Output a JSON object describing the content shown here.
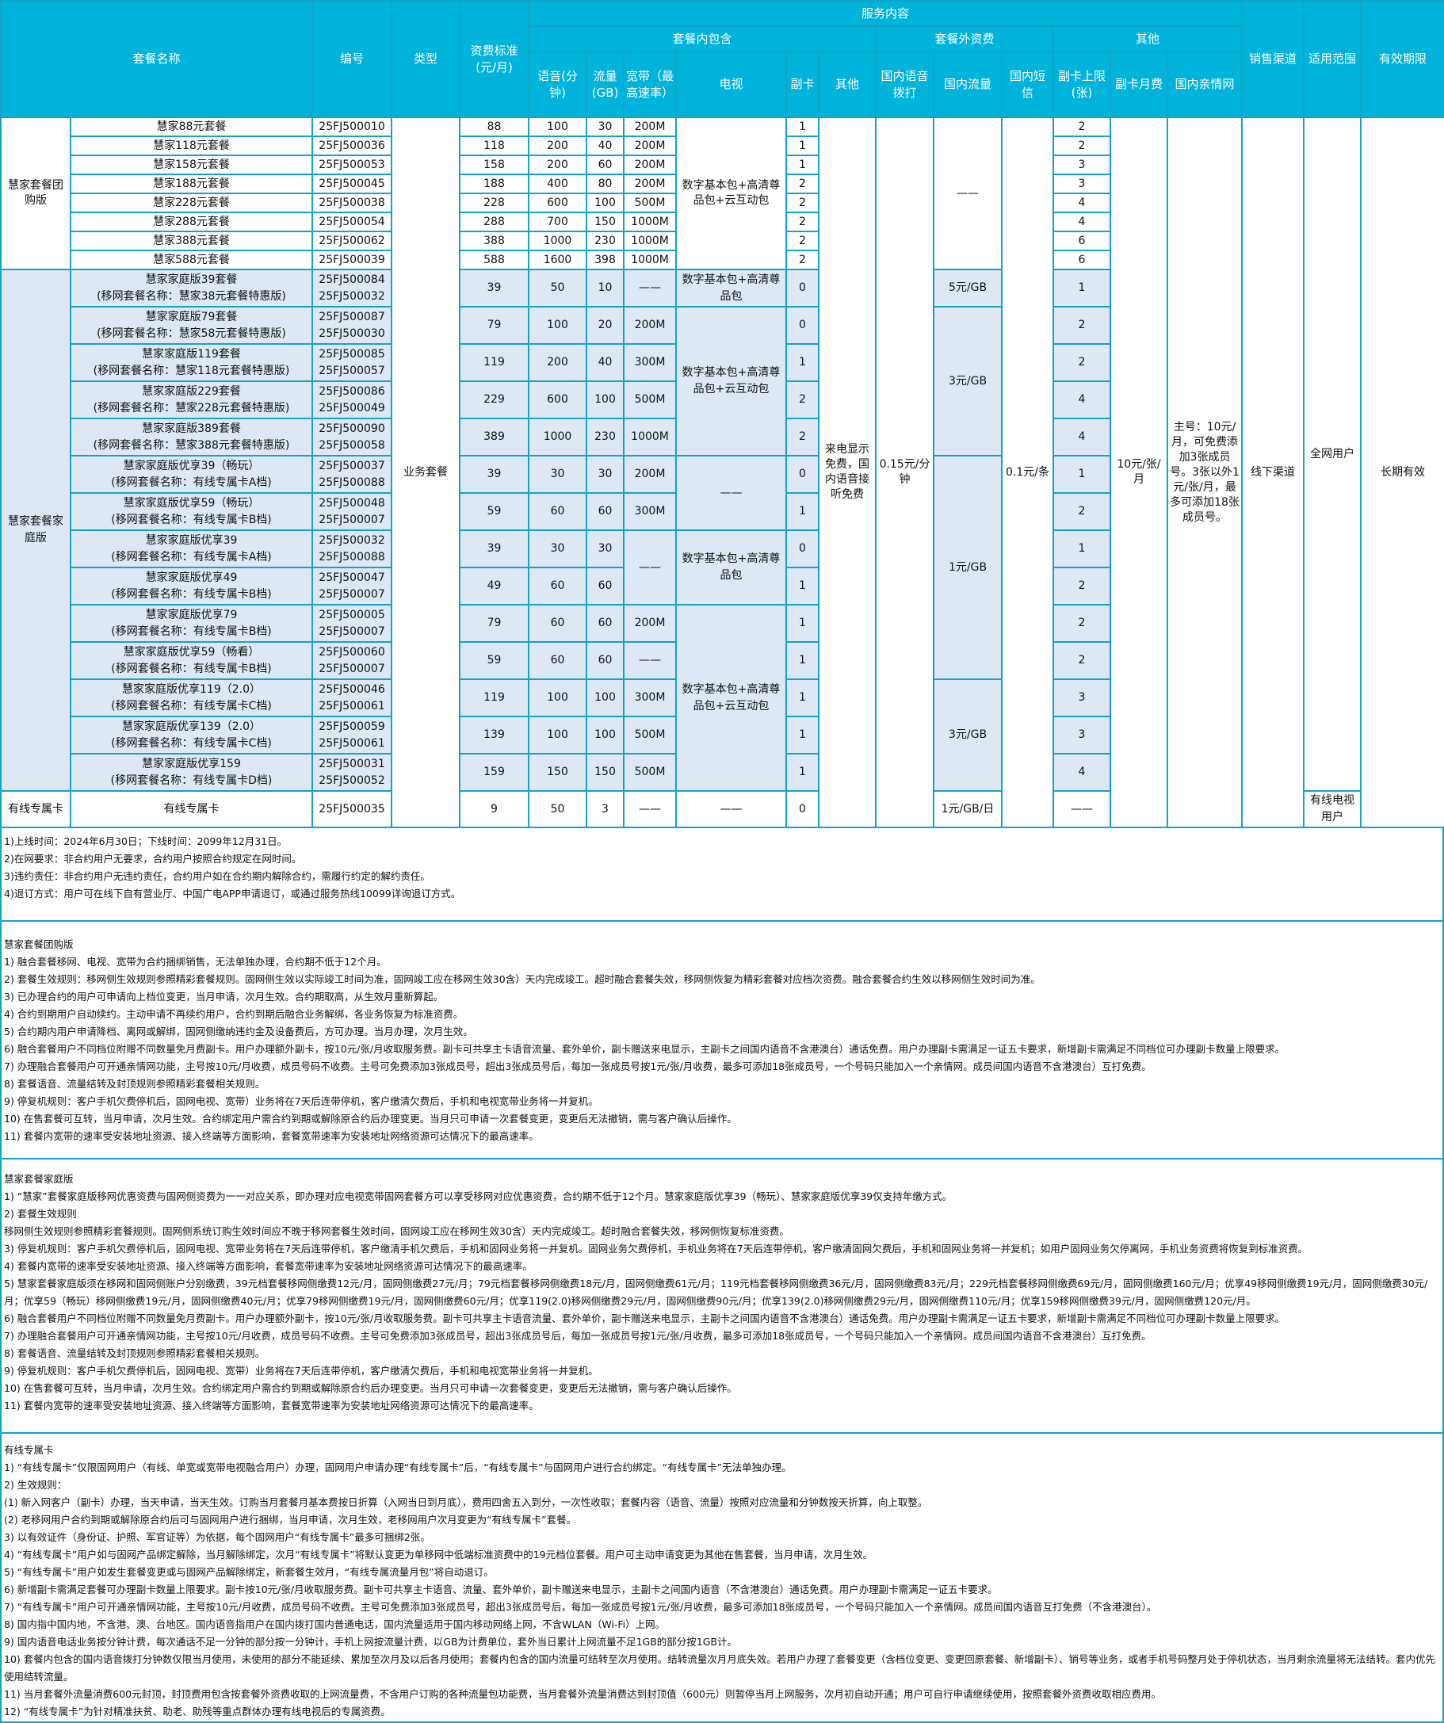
{
  "colors": {
    "header_bg": "#00b3da",
    "border": "#14a3c7",
    "family_shade": "#dde8f4"
  },
  "header": {
    "name": "套餐名称",
    "code": "编号",
    "type": "类型",
    "fee": "资费标准(元/月)",
    "service": "服务内容",
    "included": "套餐内包含",
    "extra": "套餐外资费",
    "others": "其他",
    "channel": "销售渠道",
    "scope": "适用范围",
    "validity": "有效期限",
    "voice": "语音(分钟)",
    "flow": "流量(GB)",
    "bw": "宽带（最高速率）",
    "tv": "电视",
    "fuka": "副卡",
    "other": "其他",
    "voice_out": "国内语音拨打",
    "dom_flow": "国内流量",
    "sms": "国内短信",
    "fuka_max": "副卡上限(张)",
    "fuka_fee": "副卡月费",
    "family_net": "国内亲情网"
  },
  "table": {
    "rows": [
      {
        "name": [
          "慧家88元套餐"
        ],
        "codes": [
          "25FJ500010"
        ],
        "fee": "88",
        "voice": "100",
        "flow": "30",
        "fuka": "1",
        "fuka_max": "2"
      },
      {
        "name": [
          "慧家118元套餐"
        ],
        "codes": [
          "25FJ500036"
        ],
        "fee": "118",
        "voice": "200",
        "flow": "40",
        "fuka": "1",
        "fuka_max": "2"
      },
      {
        "name": [
          "慧家158元套餐"
        ],
        "codes": [
          "25FJ500053"
        ],
        "fee": "158",
        "voice": "200",
        "flow": "60",
        "fuka": "1",
        "fuka_max": "3"
      },
      {
        "name": [
          "慧家188元套餐"
        ],
        "codes": [
          "25FJ500045"
        ],
        "fee": "188",
        "voice": "400",
        "flow": "80",
        "fuka": "2",
        "fuka_max": "3"
      },
      {
        "name": [
          "慧家228元套餐"
        ],
        "codes": [
          "25FJ500038"
        ],
        "fee": "228",
        "voice": "600",
        "flow": "100",
        "fuka": "2",
        "fuka_max": "4"
      },
      {
        "name": [
          "慧家288元套餐"
        ],
        "codes": [
          "25FJ500054"
        ],
        "fee": "288",
        "voice": "700",
        "flow": "150",
        "fuka": "2",
        "fuka_max": "4"
      },
      {
        "name": [
          "慧家388元套餐"
        ],
        "codes": [
          "25FJ500062"
        ],
        "fee": "388",
        "voice": "1000",
        "flow": "230",
        "fuka": "2",
        "fuka_max": "6"
      },
      {
        "name": [
          "慧家588元套餐"
        ],
        "codes": [
          "25FJ500039"
        ],
        "fee": "588",
        "voice": "1600",
        "flow": "398",
        "fuka": "2",
        "fuka_max": "6"
      },
      {
        "name": [
          "慧家家庭版39套餐",
          "(移网套餐名称：慧家38元套餐特惠版)"
        ],
        "codes": [
          "25FJ500084",
          "25FJ500032"
        ],
        "fee": "39",
        "voice": "50",
        "flow": "10",
        "fuka": "0",
        "fuka_max": "1"
      },
      {
        "name": [
          "慧家家庭版79套餐",
          "(移网套餐名称：慧家58元套餐特惠版)"
        ],
        "codes": [
          "25FJ500087",
          "25FJ500030"
        ],
        "fee": "79",
        "voice": "100",
        "flow": "20",
        "fuka": "0",
        "fuka_max": "2"
      },
      {
        "name": [
          "慧家家庭版119套餐",
          "(移网套餐名称：慧家118元套餐特惠版)"
        ],
        "codes": [
          "25FJ500085",
          "25FJ500057"
        ],
        "fee": "119",
        "voice": "200",
        "flow": "40",
        "fuka": "1",
        "fuka_max": "2"
      },
      {
        "name": [
          "慧家家庭版229套餐",
          "(移网套餐名称：慧家228元套餐特惠版)"
        ],
        "codes": [
          "25FJ500086",
          "25FJ500049"
        ],
        "fee": "229",
        "voice": "600",
        "flow": "100",
        "fuka": "2",
        "fuka_max": "4"
      },
      {
        "name": [
          "慧家家庭版389套餐",
          "(移网套餐名称：慧家388元套餐特惠版)"
        ],
        "codes": [
          "25FJ500090",
          "25FJ500058"
        ],
        "fee": "389",
        "voice": "1000",
        "flow": "230",
        "fuka": "2",
        "fuka_max": "4"
      },
      {
        "name": [
          "慧家家庭版优享39（畅玩）",
          "(移网套餐名称：有线专属卡A档)"
        ],
        "codes": [
          "25FJ500037",
          "25FJ500088"
        ],
        "fee": "39",
        "voice": "30",
        "flow": "30",
        "fuka": "0",
        "fuka_max": "1"
      },
      {
        "name": [
          "慧家家庭版优享59（畅玩）",
          "(移网套餐名称：有线专属卡B档)"
        ],
        "codes": [
          "25FJ500048",
          "25FJ500007"
        ],
        "fee": "59",
        "voice": "60",
        "flow": "60",
        "fuka": "1",
        "fuka_max": "2"
      },
      {
        "name": [
          "慧家家庭版优享39",
          "(移网套餐名称：有线专属卡A档)"
        ],
        "codes": [
          "25FJ500032",
          "25FJ500088"
        ],
        "fee": "39",
        "voice": "30",
        "flow": "30",
        "fuka": "0",
        "fuka_max": "1"
      },
      {
        "name": [
          "慧家家庭版优享49",
          "(移网套餐名称：有线专属卡B档)"
        ],
        "codes": [
          "25FJ500047",
          "25FJ500007"
        ],
        "fee": "49",
        "voice": "60",
        "flow": "60",
        "fuka": "1",
        "fuka_max": "2"
      },
      {
        "name": [
          "慧家家庭版优享79",
          "(移网套餐名称：有线专属卡B档)"
        ],
        "codes": [
          "25FJ500005",
          "25FJ500007"
        ],
        "fee": "79",
        "voice": "60",
        "flow": "60",
        "fuka": "1",
        "fuka_max": "2"
      },
      {
        "name": [
          "慧家家庭版优享59（畅看）",
          "(移网套餐名称：有线专属卡B档)"
        ],
        "codes": [
          "25FJ500060",
          "25FJ500007"
        ],
        "fee": "59",
        "voice": "60",
        "flow": "60",
        "fuka": "1",
        "fuka_max": "2"
      },
      {
        "name": [
          "慧家家庭版优享119（2.0）",
          "(移网套餐名称：有线专属卡C档)"
        ],
        "codes": [
          "25FJ500046",
          "25FJ500061"
        ],
        "fee": "119",
        "voice": "100",
        "flow": "100",
        "fuka": "1",
        "fuka_max": "3"
      },
      {
        "name": [
          "慧家家庭版优享139（2.0）",
          "(移网套餐名称：有线专属卡C档)"
        ],
        "codes": [
          "25FJ500059",
          "25FJ500061"
        ],
        "fee": "139",
        "voice": "100",
        "flow": "100",
        "fuka": "1",
        "fuka_max": "3"
      },
      {
        "name": [
          "慧家家庭版优享159",
          "(移网套餐名称：有线专属卡D档)"
        ],
        "codes": [
          "25FJ500031",
          "25FJ500052"
        ],
        "fee": "159",
        "voice": "150",
        "flow": "150",
        "fuka": "1",
        "fuka_max": "4"
      },
      {
        "name": [
          "有线专属卡"
        ],
        "codes": [
          "25FJ500035"
        ],
        "fee": "9",
        "voice": "50",
        "flow": "3",
        "fuka": "0",
        "fuka_max": "——"
      }
    ],
    "spans": {
      "group": [
        {
          "text": "慧家套餐团购版",
          "span": 8
        },
        {
          "text": "慧家套餐家庭版",
          "span": 14
        },
        {
          "text": "有线专属卡",
          "span": 1
        }
      ],
      "type": [
        {
          "text": "业务套餐",
          "span": 23
        }
      ],
      "bw": [
        {
          "text": "200M",
          "span": 1
        },
        {
          "text": "200M",
          "span": 1
        },
        {
          "text": "200M",
          "span": 1
        },
        {
          "text": "200M",
          "span": 1
        },
        {
          "text": "500M",
          "span": 1
        },
        {
          "text": "1000M",
          "span": 1
        },
        {
          "text": "1000M",
          "span": 1
        },
        {
          "text": "1000M",
          "span": 1
        },
        {
          "text": "——",
          "span": 1
        },
        {
          "text": "200M",
          "span": 1
        },
        {
          "text": "300M",
          "span": 1
        },
        {
          "text": "500M",
          "span": 1
        },
        {
          "text": "1000M",
          "span": 1
        },
        {
          "text": "200M",
          "span": 1
        },
        {
          "text": "300M",
          "span": 1
        },
        {
          "text": "——",
          "span": 2
        },
        {
          "text": "200M",
          "span": 1
        },
        {
          "text": "——",
          "span": 1
        },
        {
          "text": "300M",
          "span": 1
        },
        {
          "text": "500M",
          "span": 1
        },
        {
          "text": "500M",
          "span": 1
        },
        {
          "text": "——",
          "span": 1
        }
      ],
      "tv": [
        {
          "text": "数字基本包+高清尊品包+云互动包",
          "span": 8
        },
        {
          "text": "数字基本包+高清尊品包",
          "span": 1
        },
        {
          "text": "数字基本包+高清尊品包+云互动包",
          "span": 4
        },
        {
          "text": "——",
          "span": 2
        },
        {
          "text": "数字基本包+高清尊品包",
          "span": 2
        },
        {
          "text": "数字基本包+高清尊品包+云互动包",
          "span": 5
        },
        {
          "text": "——",
          "span": 1
        }
      ],
      "other": [
        {
          "text": "来电显示免费，国内语音接听免费",
          "span": 23
        }
      ],
      "voice_out": [
        {
          "text": "0.15元/分钟",
          "span": 23
        }
      ],
      "dom_flow": [
        {
          "text": "——",
          "span": 8
        },
        {
          "text": "5元/GB",
          "span": 1
        },
        {
          "text": "3元/GB",
          "span": 4
        },
        {
          "text": "1元/GB",
          "span": 6
        },
        {
          "text": "3元/GB",
          "span": 3
        },
        {
          "text": "1元/GB/日",
          "span": 1
        }
      ],
      "sms": [
        {
          "text": "0.1元/条",
          "span": 23
        }
      ],
      "fuka_fee": [
        {
          "text": "10元/张/月",
          "span": 23
        }
      ],
      "family_net": [
        {
          "text": "主号：10元/月，可免费添加3张成员号。3张以外1元/张/月，最多可添加18张成员号。",
          "span": 23
        }
      ],
      "channel": [
        {
          "text": "线下渠道",
          "span": 23
        }
      ],
      "scope": [
        {
          "text": "全网用户",
          "span": 22
        },
        {
          "text": "有线电视用户",
          "span": 1
        }
      ],
      "validity": [
        {
          "text": "长期有效",
          "span": 23
        }
      ]
    }
  },
  "notes": [
    {
      "title": "",
      "lines": [
        "1)上线时间：2024年6月30日；下线时间：2099年12月31日。",
        "2)在网要求：非合约用户无要求，合约用户按照合约规定在网时间。",
        "3)违约责任：非合约用户无违约责任，合约用户如在合约期内解除合约，需履行约定的解约责任。",
        "4)退订方式：用户可在线下自有营业厅、中国广电APP申请退订，或通过服务热线10099详询退订方式。"
      ]
    },
    {
      "title": "慧家套餐团购版",
      "lines": [
        "1) 融合套餐移网、电视、宽带为合约捆绑销售，无法单独办理，合约期不低于12个月。",
        "2) 套餐生效规则：移网侧生效规则参照精彩套餐规则。固网侧生效以实际竣工时间为准，固网竣工应在移网生效30含）天内完成竣工。超时融合套餐失效，移网侧恢复为精彩套餐对应档次资费。融合套餐合约生效以移网侧生效时间为准。",
        "3) 已办理合约的用户可申请向上档位变更，当月申请，次月生效。合约期取高，从生效月重新算起。",
        "4) 合约到期用户自动续约。主动申请不再续约用户，合约到期后融合业务解绑，各业务恢复为标准资费。",
        "5) 合约期内用户申请降档、离网或解绑，固网侧缴纳违约金及设备费后，方可办理。当月办理，次月生效。",
        "6) 融合套餐用户不同档位附赠不同数量免月费副卡。用户办理额外副卡，按10元/张/月收取服务费。副卡可共享主卡语音流量、套外单价，副卡赠送来电显示，主副卡之间国内语音不含港澳台）通话免费。用户办理副卡需满足一证五卡要求，新增副卡需满足不同档位可办理副卡数量上限要求。",
        "7) 办理融合套餐用户可开通亲情网功能，主号按10元/月收费，成员号码不收费。主号可免费添加3张成员号，超出3张成员号后，每加一张成员号按1元/张/月收费，最多可添加18张成员号，一个号码只能加入一个亲情网。成员间国内语音不含港澳台）互打免费。",
        "8) 套餐语音、流量结转及封顶规则参照精彩套餐相关规则。",
        "9) 停复机规则：客户手机欠费停机后，固网电视、宽带）业务将在7天后连带停机，客户缴清欠费后，手机和电视宽带业务将一并复机。",
        "10) 在售套餐可互转，当月申请，次月生效。合约绑定用户需合约到期或解除原合约后办理变更。当月只可申请一次套餐变更，变更后无法撤销，需与客户确认后操作。",
        "11) 套餐内宽带的速率受安装地址资源、接入终端等方面影响，套餐宽带速率为安装地址网络资源可达情况下的最高速率。"
      ]
    },
    {
      "title": "慧家套餐家庭版",
      "lines": [
        "1) “慧家”套餐家庭版移网优惠资费与固网侧资费为一一对应关系，即办理对应电视宽带固网套餐方可以享受移网对应优惠资费，合约期不低于12个月。慧家家庭版优享39（畅玩）、慧家家庭版优享39仅支持年缴方式。",
        "2) 套餐生效规则",
        "移网侧生效规则参照精彩套餐规则。固网侧系统订购生效时间应不晚于移网套餐生效时间，固网竣工应在移网生效30含）天内完成竣工。超时融合套餐失效，移网侧恢复标准资费。",
        "3) 停复机规则：客户手机欠费停机后，固网电视、宽带业务将在7天后连带停机，客户缴清手机欠费后，手机和固网业务将一并复机。固网业务欠费停机，手机业务将在7天后连带停机，客户缴清固网欠费后，手机和固网业务将一并复机；如用户固网业务欠停离网，手机业务资费将恢复到标准资费。",
        "4) 套餐内宽带的速率受安装地址资源、接入终端等方面影响，套餐宽带速率为安装地址网络资源可达情况下的最高速率。",
        "5) 慧家套餐家庭版须在移网和固网侧账户分别缴费，39元档套餐移网侧缴费12元/月，固网侧缴费27元/月；79元档套餐移网侧缴费18元/月，固网侧缴费61元/月；119元档套餐移网侧缴费36元/月，固网侧缴费83元/月；229元档套餐移网侧缴费69元/月，固网侧缴费160元/月；优享49移网侧缴费19元/月，固网侧缴费30元/月；优享59（畅玩）移网侧缴费19元/月，固网侧缴费40元/月；优享79移网侧缴费19元/月，固网侧缴费60元/月；优享119(2.0)移网侧缴费29元/月，固网侧缴费90元/月；优享139(2.0)移网侧缴费29元/月，固网侧缴费110元/月；优享159移网侧缴费39元/月，固网侧缴费120元/月。",
        "6) 融合套餐用户不同档位附赠不同数量免月费副卡。用户办理额外副卡，按10元/张/月收取服务费。副卡可共享主卡语音流量、套外单价，副卡赠送来电显示，主副卡之间国内语音不含港澳台）通话免费。用户办理副卡需满足一证五卡要求，新增副卡需满足不同档位可办理副卡数量上限要求。",
        "7) 办理融合套餐用户可开通亲情网功能，主号按10元/月收费，成员号码不收费。主号可免费添加3张成员号，超出3张成员号后，每加一张成员号按1元/张/月收费，最多可添加18张成员号，一个号码只能加入一个亲情网。成员间国内语音不含港澳台）互打免费。",
        "8) 套餐语音、流量结转及封顶规则参照精彩套餐相关规则。",
        "9) 停复机规则：客户手机欠费停机后，固网电视、宽带）业务将在7天后连带停机，客户缴清欠费后，手机和电视宽带业务将一并复机。",
        "10) 在售套餐可互转，当月申请，次月生效。合约绑定用户需合约到期或解除原合约后办理变更。当月只可申请一次套餐变更，变更后无法撤销，需与客户确认后操作。",
        "11) 套餐内宽带的速率受安装地址资源、接入终端等方面影响，套餐宽带速率为安装地址网络资源可达情况下的最高速率。"
      ]
    },
    {
      "title": "有线专属卡",
      "lines": [
        "1) “有线专属卡”仅限固网用户（有线、单宽或宽带电视融合用户）办理，固网用户申请办理“有线专属卡”后，“有线专属卡”与固网用户进行合约绑定。“有线专属卡”无法单独办理。",
        "2) 生效规则：",
        " (1) 新入网客户（副卡）办理，当天申请，当天生效。订购当月套餐月基本费按日折算（入网当日到月底），费用四舍五入到分，一次性收取；套餐内容（语音、流量）按照对应流量和分钟数按天折算，向上取整。",
        " (2) 老移网用户合约到期或解除原合约后可与固网用户进行捆绑，当月申请，次月生效，老移网用户次月变更为“有线专属卡”套餐。",
        "3) 以有效证件（身份证、护照、军官证等）为依据，每个固网用户“有线专属卡”最多可捆绑2张。",
        "4) “有线专属卡”用户如与固网产品绑定解除，当月解除绑定，次月“有线专属卡”将默认变更为单移网中低端标准资费中的19元档位套餐。用户可主动申请变更为其他在售套餐，当月申请，次月生效。",
        "5) “有线专属卡”用户如发生套餐变更或与固网产品解除绑定，新套餐生效月，“有线专属流量月包”将自动退订。",
        "6) 新增副卡需满足套餐可办理副卡数量上限要求。副卡按10元/张/月收取服务费。副卡可共享主卡语音、流量、套外单价，副卡赠送来电显示，主副卡之间国内语音（不含港澳台）通话免费。用户办理副卡需满足一证五卡要求。",
        "7) “有线专属卡”用户可开通亲情网功能，主号按10元/月收费，成员号码不收费。主号可免费添加3张成员号，超出3张成员号后，每加一张成员号按1元/张/月收费，最多可添加18张成员号，一个号码只能加入一个亲情网。成员间国内语音互打免费（不含港澳台）。",
        "8) 国内指中国内地，不含港、澳、台地区。国内语音指用户在国内拨打国内普通电话，国内流量适用于国内移动网络上网，不含WLAN（Wi-Fi）上网。",
        "9) 国内语音电话业务按分钟计费，每次通话不足一分钟的部分按一分钟计，手机上网按流量计费，以GB为计费单位，套外当日累计上网流量不足1GB的部分按1GB计。",
        "10) 套餐内包含的国内语音拨打分钟数仅限当月使用，未使用的部分不能延续、累加至次月及以后各月使用；套餐内包含的国内流量可结转至次月使用。结转流量次月月底失效。若用户办理了套餐变更（含档位变更、变更回原套餐、新增副卡）、销号等业务，或者手机号码整月处于停机状态，当月剩余流量将无法结转。套内优先使用结转流量。",
        "11) 当月套餐外流量消费600元封顶，封顶费用包含按套餐外资费收取的上网流量费，不含用户订购的各种流量包功能费，当月套餐外流量消费达到封顶值（600元）则暂停当月上网服务，次月初自动开通；用户可自行申请继续使用，按照套餐外资费收取相应费用。",
        "12) “有线专属卡”为针对精准扶贫、助老、助残等重点群体办理有线电视后的专属资费。"
      ]
    }
  ]
}
